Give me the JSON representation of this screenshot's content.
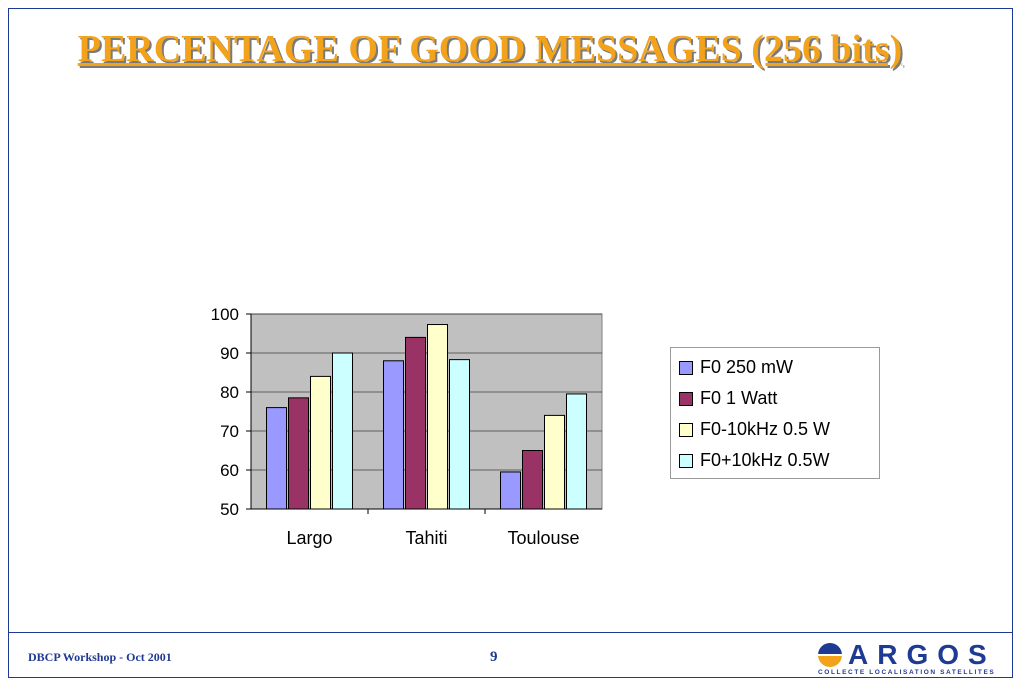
{
  "slide": {
    "title": "PERCENTAGE OF GOOD MESSAGES (256 bits)",
    "footer_left": "DBCP Workshop - Oct 2001",
    "page_number": "9",
    "logo": {
      "wordmark": "ARGOS",
      "tagline": "COLLECTE LOCALISATION SATELLITES"
    }
  },
  "chart_data": {
    "type": "bar",
    "categories": [
      "Largo",
      "Tahiti",
      "Toulouse"
    ],
    "series": [
      {
        "name": "F0 250 mW",
        "values": [
          76,
          88,
          59.5
        ],
        "color": "#9999ff"
      },
      {
        "name": "F0 1 Watt",
        "values": [
          78.5,
          94,
          65
        ],
        "color": "#993366"
      },
      {
        "name": "F0-10kHz 0.5 W",
        "values": [
          84,
          97.3,
          74
        ],
        "color": "#ffffcc"
      },
      {
        "name": "F0+10kHz 0.5W",
        "values": [
          90,
          88.3,
          79.5
        ],
        "color": "#ccffff"
      }
    ],
    "ylim": [
      50,
      100
    ],
    "yticks": [
      "50",
      "60",
      "70",
      "80",
      "90",
      "100"
    ],
    "grid": true,
    "plot_background": "#c0c0c0",
    "legend_position": "right",
    "xlabel": "",
    "ylabel": ""
  }
}
